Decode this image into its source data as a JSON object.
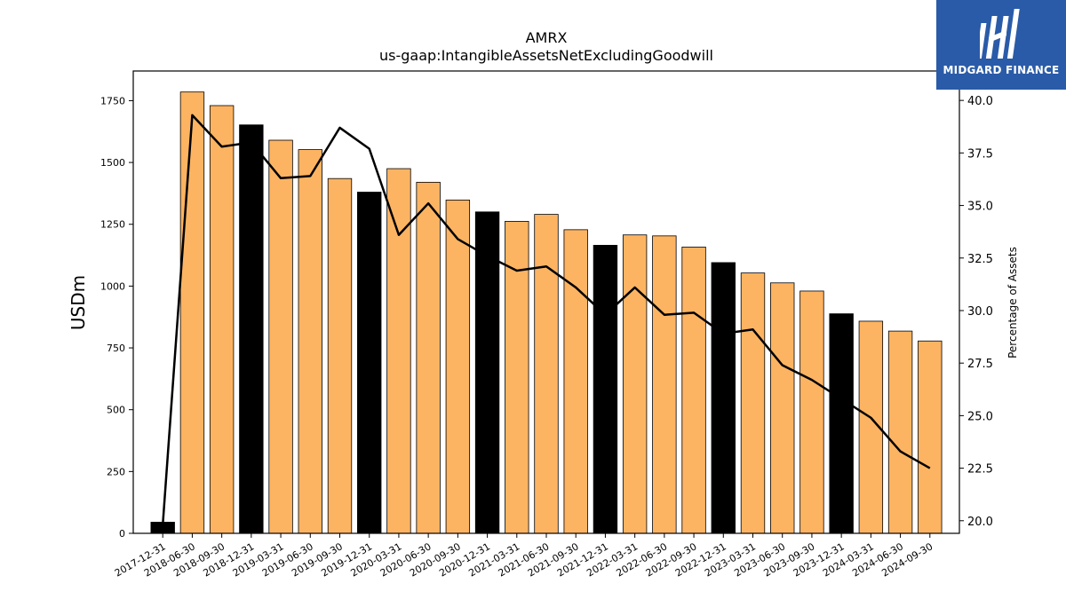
{
  "chart_data": {
    "type": "bar",
    "title": "AMRX",
    "subtitle": "us-gaap:IntangibleAssetsNetExcludingGoodwill",
    "ylabel": "USDm",
    "y2label": "Percentage of Assets",
    "ylim": [
      0,
      1870
    ],
    "y2lim": [
      19.4,
      41.4
    ],
    "yticks": [
      0,
      250,
      500,
      750,
      1000,
      1250,
      1500,
      1750
    ],
    "y2ticks": [
      20.0,
      22.5,
      25.0,
      27.5,
      30.0,
      32.5,
      35.0,
      37.5,
      40.0
    ],
    "categories": [
      "2017-12-31",
      "2018-06-30",
      "2018-09-30",
      "2018-12-31",
      "2019-03-31",
      "2019-06-30",
      "2019-09-30",
      "2019-12-31",
      "2020-03-31",
      "2020-06-30",
      "2020-09-30",
      "2020-12-31",
      "2021-03-31",
      "2021-06-30",
      "2021-09-30",
      "2021-12-31",
      "2022-03-31",
      "2022-06-30",
      "2022-09-30",
      "2022-12-31",
      "2023-03-31",
      "2023-06-30",
      "2023-09-30",
      "2023-12-31",
      "2024-03-31",
      "2024-06-30",
      "2024-09-30"
    ],
    "series": [
      {
        "type": "bar",
        "axis": "left",
        "values": [
          45,
          1785,
          1730,
          1652,
          1590,
          1552,
          1435,
          1380,
          1475,
          1420,
          1348,
          1300,
          1262,
          1290,
          1228,
          1165,
          1207,
          1203,
          1158,
          1095,
          1053,
          1013,
          980,
          888,
          858,
          818,
          778
        ],
        "colors": [
          "#000000",
          "#fdb462",
          "#fdb462",
          "#000000",
          "#fdb462",
          "#fdb462",
          "#fdb462",
          "#000000",
          "#fdb462",
          "#fdb462",
          "#fdb462",
          "#000000",
          "#fdb462",
          "#fdb462",
          "#fdb462",
          "#000000",
          "#fdb462",
          "#fdb462",
          "#fdb462",
          "#000000",
          "#fdb462",
          "#fdb462",
          "#fdb462",
          "#000000",
          "#fdb462",
          "#fdb462",
          "#fdb462"
        ]
      },
      {
        "type": "line",
        "axis": "right",
        "color": "#000000",
        "values": [
          19.8,
          39.3,
          37.8,
          38.0,
          36.3,
          36.4,
          38.7,
          37.7,
          33.6,
          35.1,
          33.4,
          32.6,
          31.9,
          32.1,
          31.1,
          29.8,
          31.1,
          29.8,
          29.9,
          28.9,
          29.1,
          27.4,
          26.7,
          25.8,
          24.9,
          23.3,
          22.5
        ]
      }
    ],
    "grid": false,
    "legend": "none"
  },
  "brand": {
    "name": "MIDGARD FINANCE",
    "color": "#2a5ba8",
    "icon": "midgard-logo-icon"
  }
}
